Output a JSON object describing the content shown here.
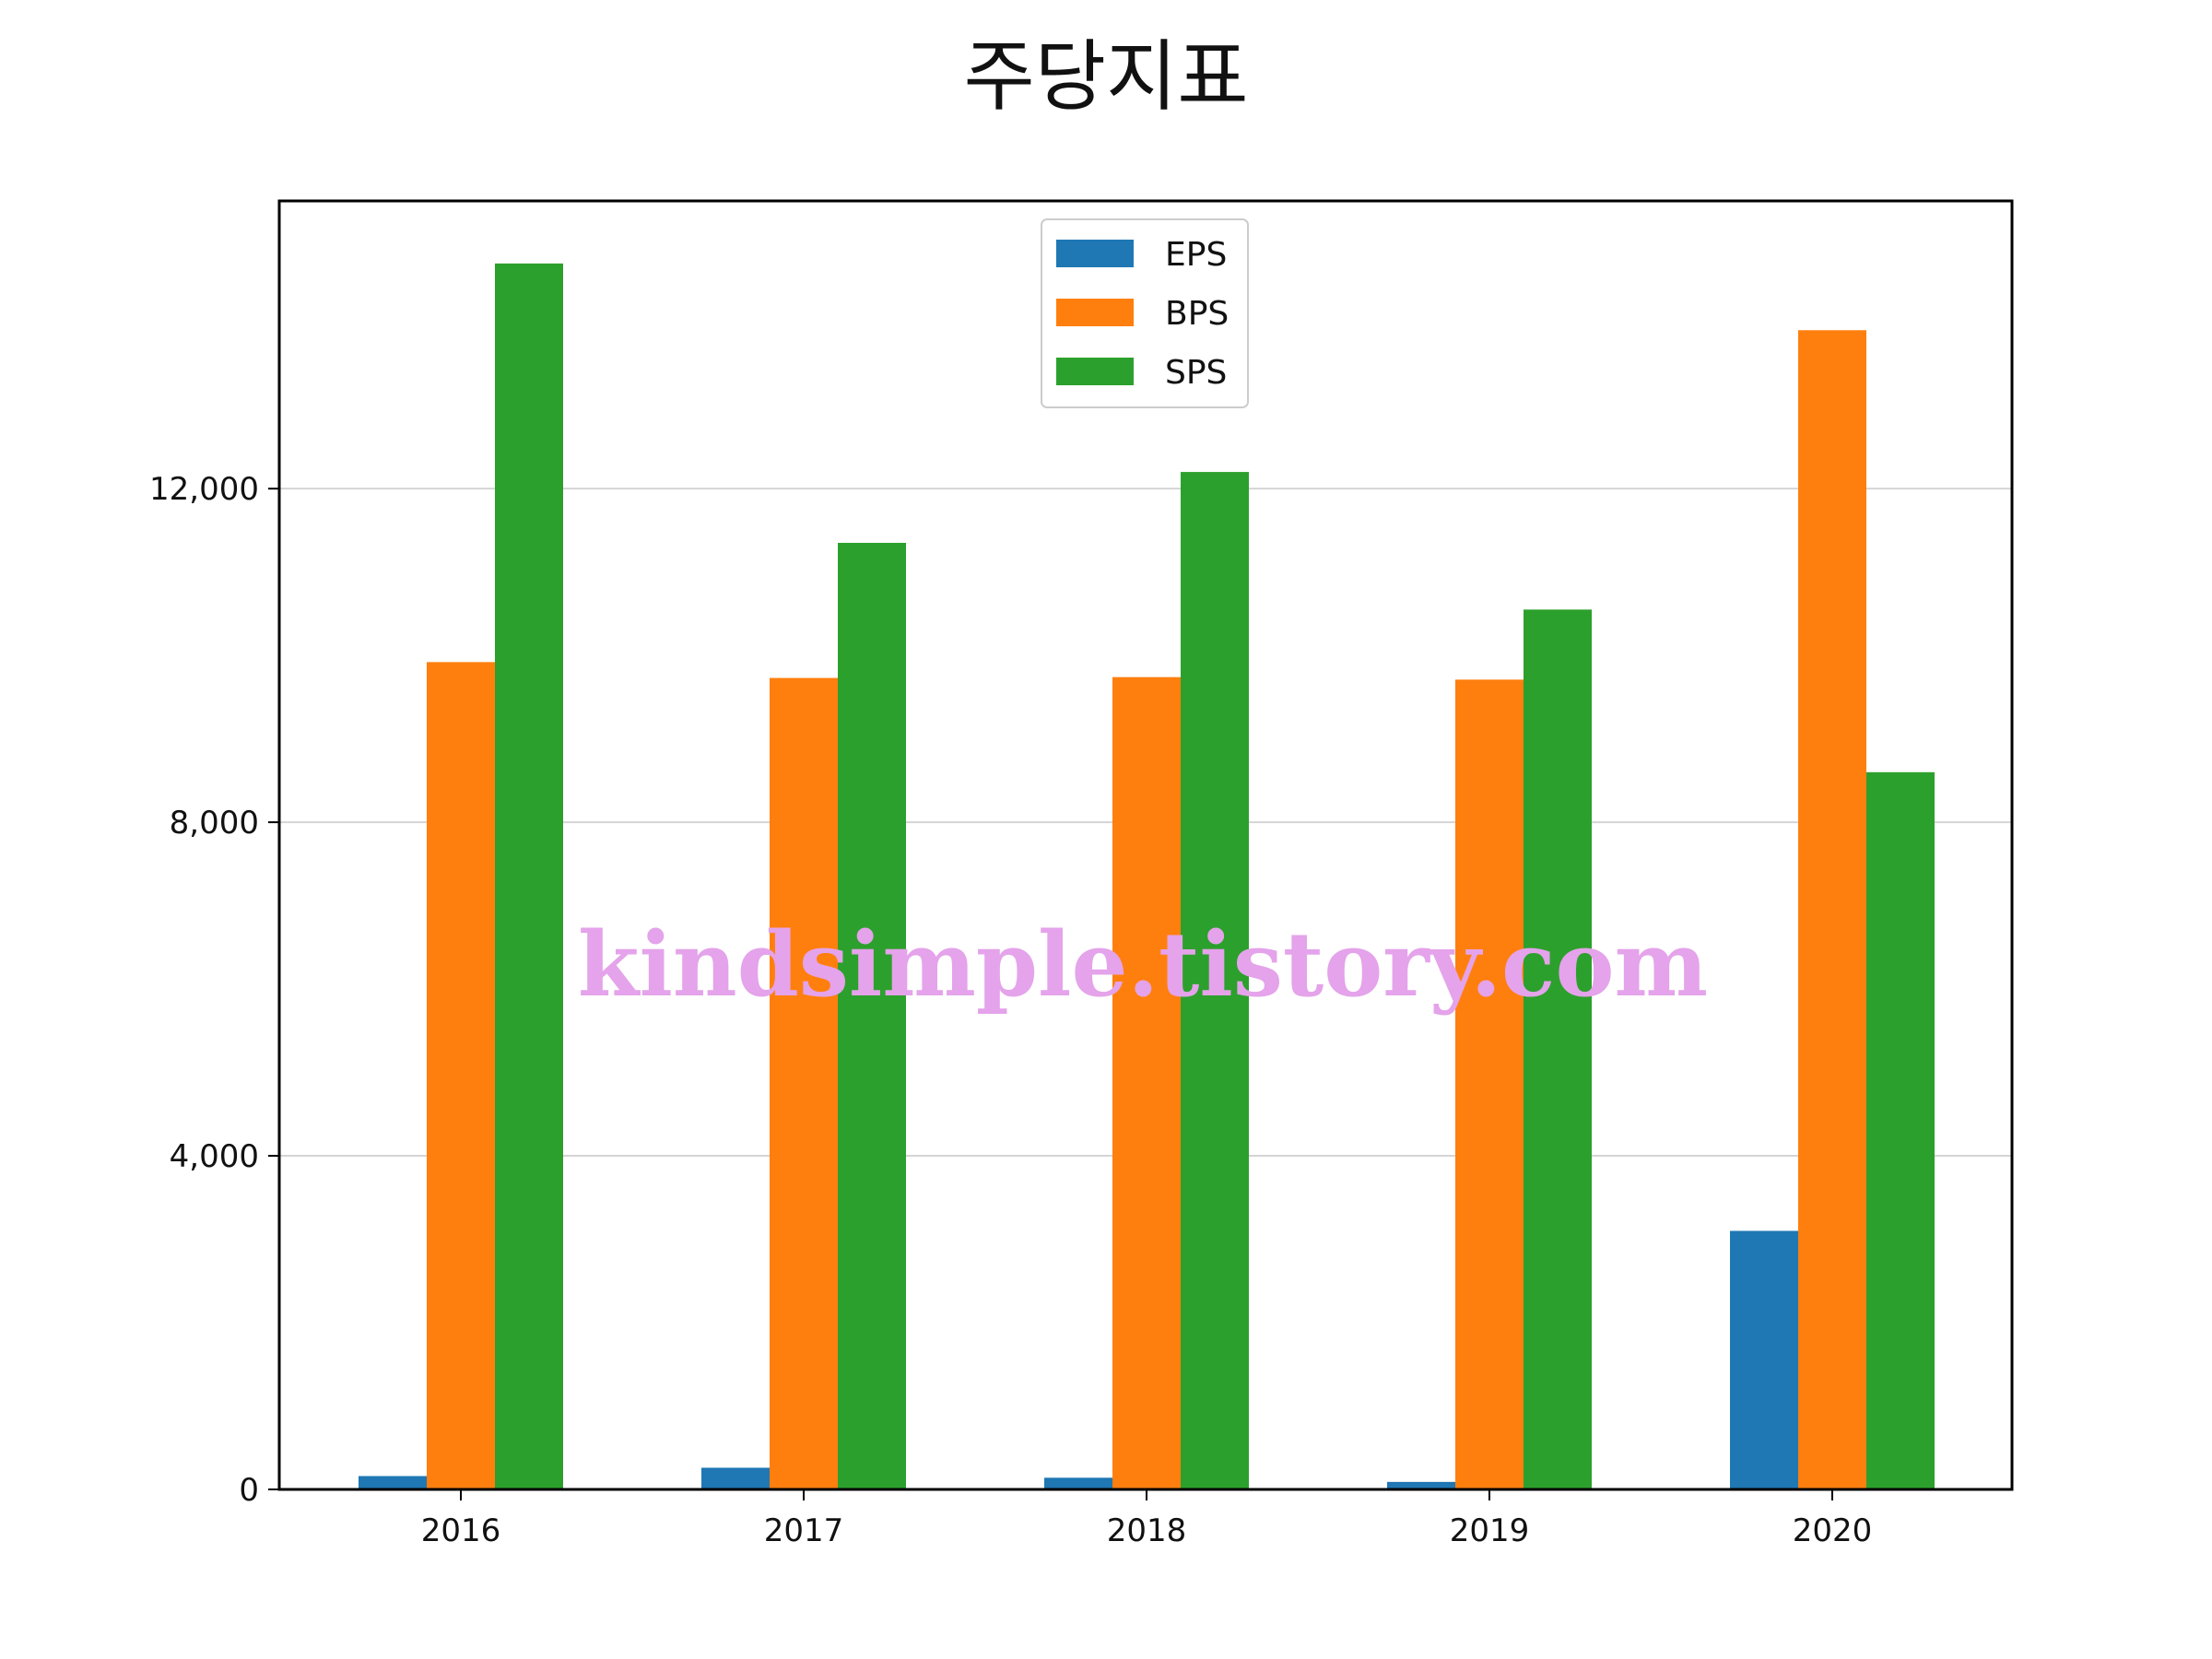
{
  "chart_data": {
    "type": "bar",
    "title": "주당지표",
    "categories": [
      "2016",
      "2017",
      "2018",
      "2019",
      "2020"
    ],
    "series": [
      {
        "name": "EPS",
        "color": "#1f77b4",
        "values": [
          160,
          260,
          140,
          90,
          3100
        ]
      },
      {
        "name": "BPS",
        "color": "#ff7f0e",
        "values": [
          9920,
          9730,
          9740,
          9710,
          13900
        ]
      },
      {
        "name": "SPS",
        "color": "#2ca02c",
        "values": [
          14700,
          11350,
          12200,
          10550,
          8600
        ]
      }
    ],
    "ylim": [
      0,
      15450
    ],
    "yticks": [
      0,
      4000,
      8000,
      12000
    ],
    "ytick_labels": [
      "0",
      "4,000",
      "8,000",
      "12,000"
    ],
    "grid": "y",
    "legend": "upper center",
    "watermark": "kindsimple.tistory.com"
  }
}
